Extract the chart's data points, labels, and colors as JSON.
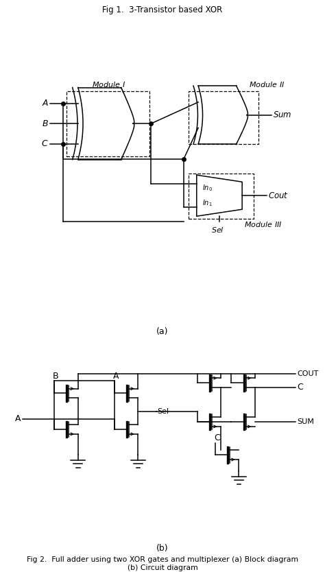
{
  "title1": "Fig 1.  3-Transistor based XOR",
  "caption_a": "(a)",
  "caption_b": "(b)",
  "fig2_caption_line1": "Fig 2.  Full adder using two XOR gates and multiplexer (a) Block diagram",
  "fig2_caption_line2": "(b) Circuit diagram",
  "bg_color": "#ffffff",
  "line_color": "#000000",
  "text_color": "#111111",
  "fig_width": 4.74,
  "fig_height": 8.34,
  "dpi": 100
}
